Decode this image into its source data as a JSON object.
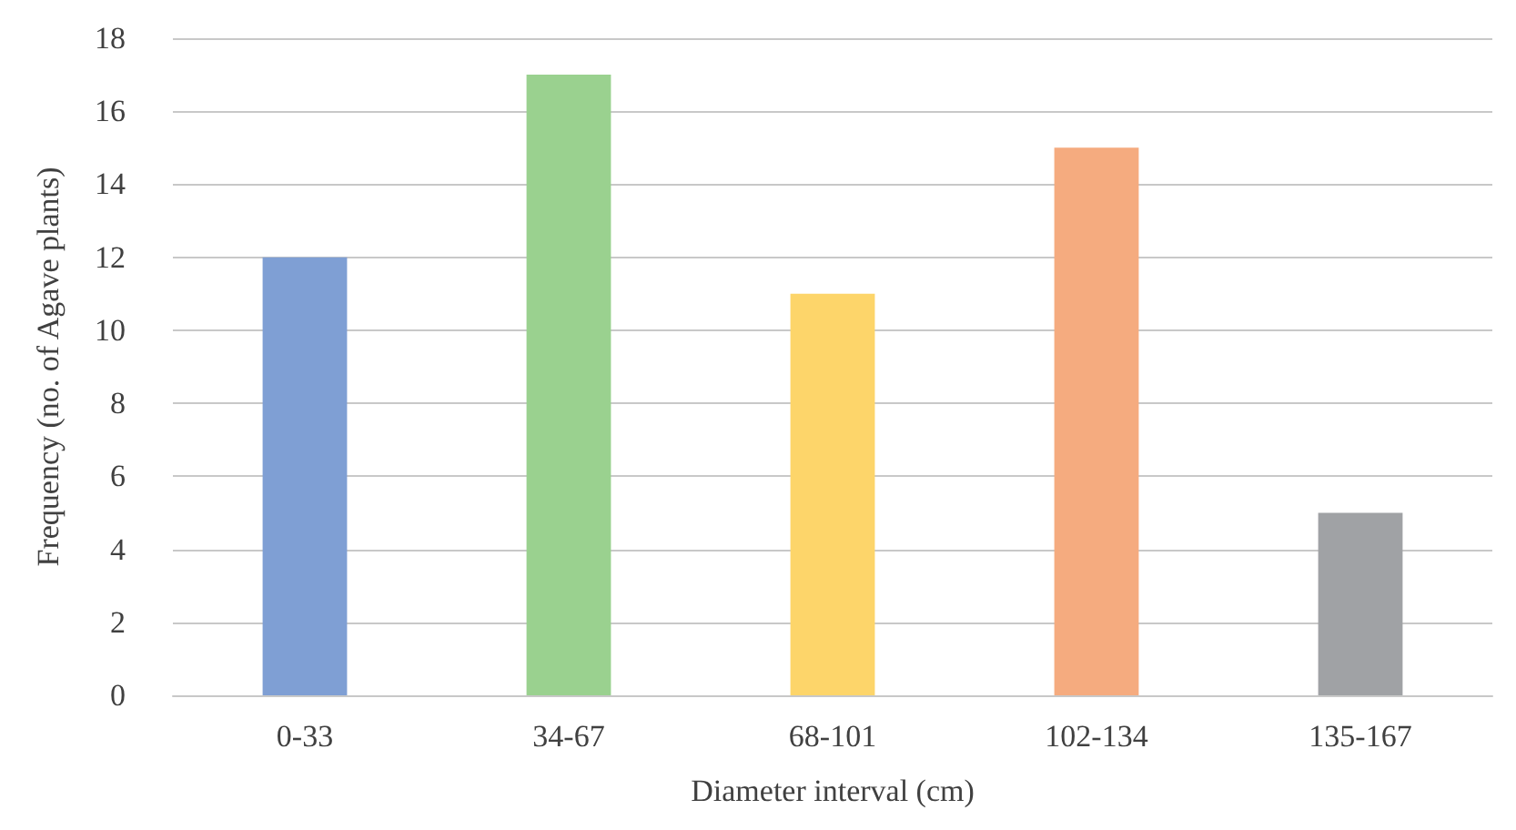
{
  "chart_data": {
    "type": "bar",
    "xlabel": "Diameter interval (cm)",
    "ylabel": "Frequency (no. of Agave plants)",
    "categories": [
      "0-33",
      "34-67",
      "68-101",
      "102-134",
      "135-167"
    ],
    "values": [
      12,
      17,
      11,
      15,
      5
    ],
    "colors": [
      "#7f9fd4",
      "#9ad18f",
      "#fdd56a",
      "#f5ab7f",
      "#a0a2a5"
    ],
    "ylim": [
      0,
      18
    ],
    "yticks": [
      0,
      2,
      4,
      6,
      8,
      10,
      12,
      14,
      16,
      18
    ],
    "grid": "y"
  }
}
